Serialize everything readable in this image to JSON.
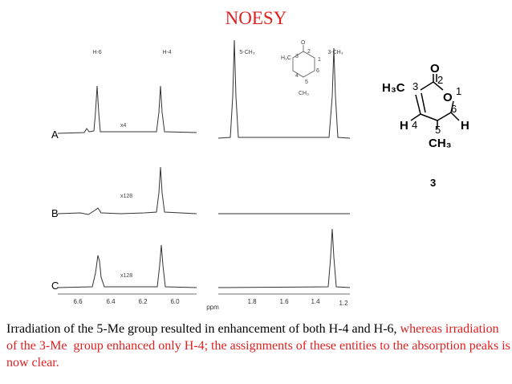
{
  "title": "NOESY",
  "spectrum": {
    "peak_labels": [
      "H-6",
      "H-4",
      "5-CH₃",
      "3-CH₃"
    ],
    "trace_labels": [
      "A",
      "B",
      "C"
    ],
    "scale_labels": [
      "x4",
      "x128",
      "x128"
    ],
    "axis_ticks_left": [
      "6.6",
      "6.4",
      "6.2",
      "6.0"
    ],
    "axis_unit": "ppm",
    "axis_ticks_right": [
      "1.8",
      "1.6",
      "1.4",
      "1.2"
    ],
    "inset_labels": [
      "H₃C",
      "3",
      "2",
      "O",
      "1",
      "6",
      "4",
      "5",
      "CH₃"
    ]
  },
  "structure": {
    "atoms": [
      "O",
      "2",
      "H₃C",
      "3",
      "O",
      "1",
      "6",
      "H",
      "4",
      "5",
      "H",
      "CH₃"
    ],
    "compound_number": "3"
  },
  "caption": {
    "black": "Irradiation of the 5-Me group resulted in enhancement of both H-4 and H-6,",
    "red": "whereas irradiation of the 3-Me  group enhanced only H-4; the assignments of these entities to the absorption peaks is now clear."
  }
}
